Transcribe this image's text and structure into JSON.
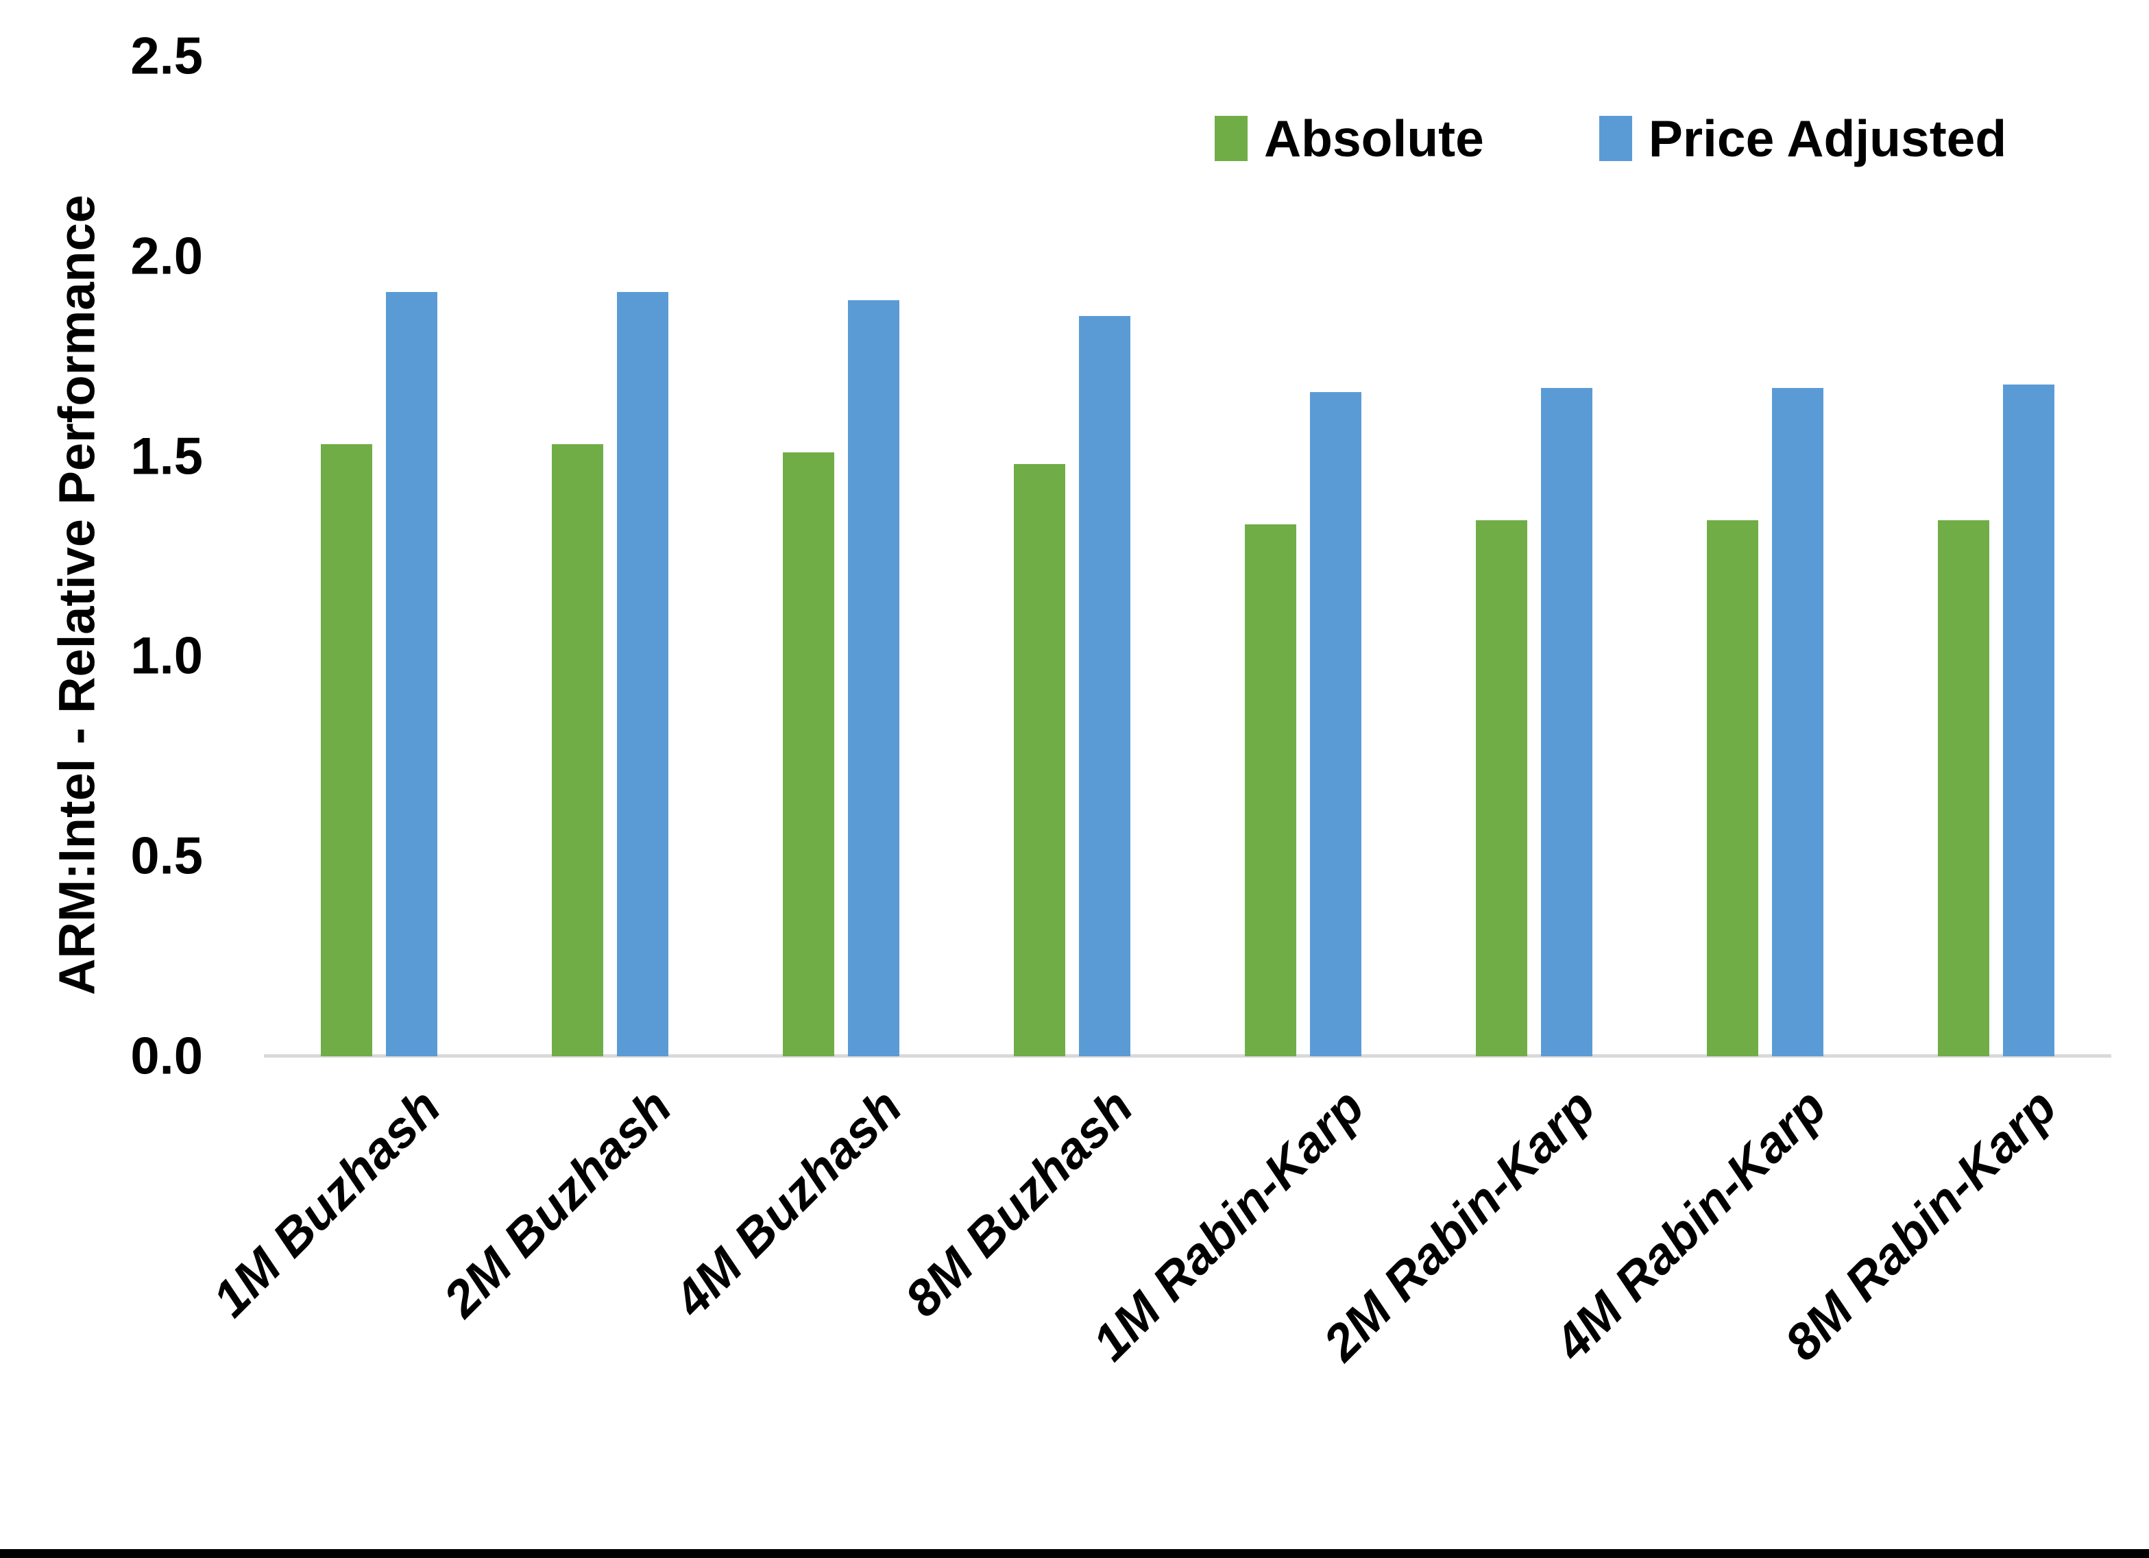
{
  "chart_data": {
    "type": "bar",
    "title": "",
    "ylabel": "ARM:Intel - Relative Performance",
    "xlabel": "",
    "categories": [
      "1M Buzhash",
      "2M Buzhash",
      "4M Buzhash",
      "8M Buzhash",
      "1M Rabin-Karp",
      "2M Rabin-Karp",
      "4M Rabin-Karp",
      "8M Rabin-Karp"
    ],
    "series": [
      {
        "name": "Absolute",
        "color": "#70AD47",
        "values": [
          1.53,
          1.53,
          1.51,
          1.48,
          1.33,
          1.34,
          1.34,
          1.34
        ]
      },
      {
        "name": "Price Adjusted",
        "color": "#5B9BD5",
        "values": [
          1.91,
          1.91,
          1.89,
          1.85,
          1.66,
          1.67,
          1.67,
          1.68
        ]
      }
    ],
    "ylim": [
      0.0,
      2.5
    ],
    "yticks": [
      "0.0",
      "0.5",
      "1.0",
      "1.5",
      "2.0",
      "2.5"
    ],
    "grid": false,
    "legend_position": "top-right",
    "category_label_rotation_deg": 45,
    "baseline_color": "#D9D9D9",
    "text_color": "#000000",
    "bottom_rule_color": "#000000"
  }
}
